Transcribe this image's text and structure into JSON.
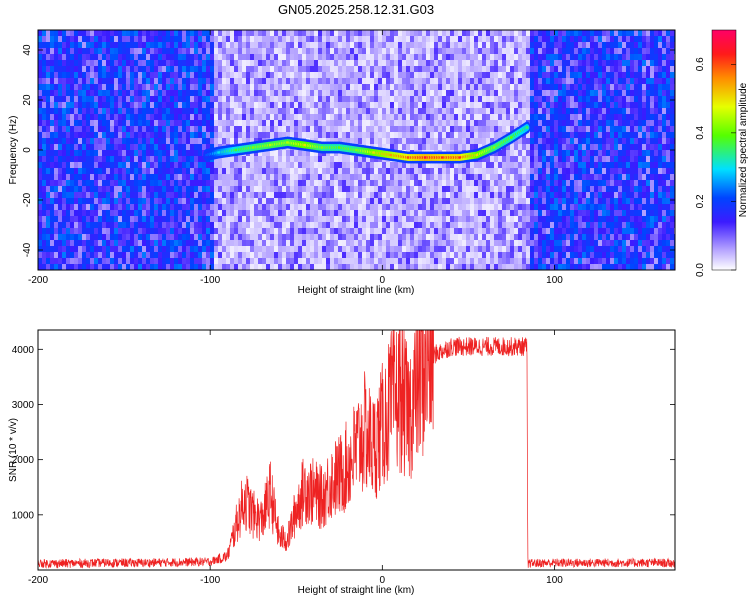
{
  "title": "GN05.2025.258.12.31.G03",
  "chart_data": [
    {
      "type": "heatmap",
      "title": "GN05.2025.258.12.31.G03",
      "xlabel": "Height of straight line (km)",
      "ylabel": "Frequency (Hz)",
      "xlim": [
        -200,
        170
      ],
      "ylim": [
        -48,
        48
      ],
      "xticks": [
        -200,
        -100,
        0,
        100
      ],
      "yticks": [
        -40,
        -20,
        0,
        20,
        40
      ],
      "tick_labels_x": [
        "-200",
        "-100",
        "0",
        "100"
      ],
      "tick_labels_y": [
        "-40",
        "-20",
        "0",
        "20",
        "40"
      ],
      "colorbar": {
        "label": "Normalized spectral amplitude",
        "range": [
          0.0,
          0.7
        ],
        "ticks": [
          "0.0",
          "0.2",
          "0.4",
          "0.6"
        ]
      },
      "signal_trace": {
        "x_km": [
          -102,
          -95,
          -85,
          -75,
          -65,
          -55,
          -45,
          -35,
          -25,
          -15,
          -5,
          5,
          15,
          25,
          35,
          45,
          55,
          65,
          75,
          84
        ],
        "freq_hz": [
          -2,
          -1,
          0,
          1,
          2,
          3,
          2,
          1,
          1,
          0,
          -1,
          -2,
          -3,
          -3,
          -3,
          -3,
          -2,
          1,
          5,
          9
        ],
        "amplitude": [
          0.22,
          0.3,
          0.38,
          0.42,
          0.45,
          0.45,
          0.5,
          0.42,
          0.4,
          0.42,
          0.5,
          0.55,
          0.6,
          0.65,
          0.62,
          0.62,
          0.5,
          0.42,
          0.4,
          0.35
        ]
      },
      "low_signal_region_km": [
        -100,
        85
      ]
    },
    {
      "type": "line",
      "xlabel": "Height of straight line (km)",
      "ylabel": "SNR (10 * v/v)",
      "xlim": [
        -200,
        170
      ],
      "ylim": [
        0,
        4350
      ],
      "xticks": [
        -200,
        -100,
        0,
        100
      ],
      "yticks": [
        1000,
        2000,
        3000,
        4000
      ],
      "tick_labels_x": [
        "-200",
        "-100",
        "0",
        "100"
      ],
      "tick_labels_y": [
        "1000",
        "2000",
        "3000",
        "4000"
      ],
      "color": "#ee2222",
      "series": [
        {
          "name": "SNR",
          "x": [
            -200,
            -180,
            -160,
            -140,
            -120,
            -100,
            -90,
            -85,
            -80,
            -75,
            -70,
            -65,
            -60,
            -55,
            -50,
            -45,
            -40,
            -35,
            -30,
            -25,
            -20,
            -15,
            -10,
            -5,
            0,
            5,
            10,
            15,
            20,
            25,
            30,
            40,
            50,
            60,
            70,
            80,
            84,
            84.5,
            100,
            120,
            140,
            160,
            170
          ],
          "y": [
            120,
            120,
            130,
            130,
            140,
            150,
            250,
            800,
            1300,
            1000,
            900,
            1400,
            600,
            550,
            1100,
            1500,
            1400,
            1300,
            1600,
            1700,
            1900,
            2200,
            2500,
            2200,
            2600,
            3000,
            3200,
            2800,
            3300,
            3700,
            3900,
            4050,
            4050,
            4050,
            4050,
            4050,
            4050,
            120,
            130,
            130,
            130,
            130,
            120
          ]
        }
      ]
    }
  ]
}
